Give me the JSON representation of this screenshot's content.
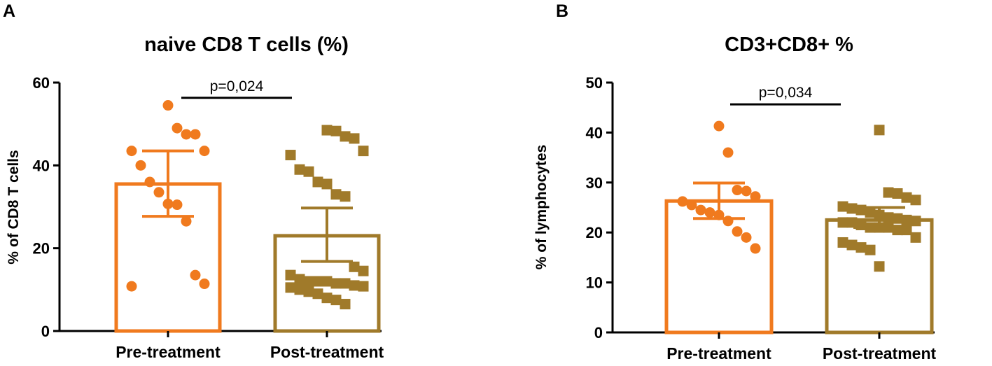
{
  "chart_data": [
    {
      "type": "bar",
      "panel": "A",
      "title": "naive CD8 T cells (%)",
      "xlabel": "",
      "ylabel": "% of CD8 T cells",
      "ylim": [
        0,
        60
      ],
      "yticks": [
        0,
        20,
        40,
        60
      ],
      "categories": [
        "Pre-treatment",
        "Post-treatment"
      ],
      "colors": [
        "#f07a1e",
        "#a07a2a"
      ],
      "markers": [
        "circle",
        "square"
      ],
      "means": [
        35.5,
        23.0
      ],
      "error_low": [
        27.7,
        16.8
      ],
      "error_high": [
        43.5,
        29.7
      ],
      "significance": {
        "label": "p=0,024",
        "y": 57
      },
      "points": [
        [
          54.5,
          49,
          47.5,
          47.5,
          43.5,
          43.5,
          40,
          36,
          33.5,
          30.7,
          30.5,
          26.5,
          13.5,
          11.4,
          10.8
        ],
        [
          48.5,
          48.3,
          47,
          46.5,
          43.5,
          42.5,
          39,
          38.5,
          36,
          35.5,
          33,
          32.5,
          15.5,
          14.5,
          13.5,
          12.5,
          12,
          12,
          12,
          11.5,
          11.5,
          11,
          10.8,
          10.5,
          10,
          9.5,
          9,
          8,
          7.5,
          6.5
        ]
      ]
    },
    {
      "type": "bar",
      "panel": "B",
      "title": "CD3+CD8+ %",
      "xlabel": "",
      "ylabel": "% of lymphocytes",
      "ylim": [
        0,
        50
      ],
      "yticks": [
        0,
        10,
        20,
        30,
        40,
        50
      ],
      "categories": [
        "Pre-treatment",
        "Post-treatment"
      ],
      "colors": [
        "#f07a1e",
        "#a07a2a"
      ],
      "markers": [
        "circle",
        "square"
      ],
      "means": [
        26.3,
        22.5
      ],
      "error_low": [
        22.8,
        21.0
      ],
      "error_high": [
        29.9,
        25.0
      ],
      "significance": {
        "label": "p=0,034",
        "y": 46.2
      },
      "points": [
        [
          41.3,
          36,
          28.5,
          28.3,
          27.2,
          26.2,
          25.5,
          24.5,
          24,
          23.5,
          22.3,
          20.2,
          19,
          16.8
        ],
        [
          40.5,
          28,
          27.8,
          27,
          26.5,
          25.2,
          24.8,
          24.5,
          24,
          23.5,
          23,
          22.8,
          22.5,
          22.3,
          22,
          22,
          21.5,
          21,
          21,
          21,
          20.5,
          20.5,
          19,
          18,
          17.5,
          17,
          16.5,
          13.2
        ]
      ]
    }
  ]
}
